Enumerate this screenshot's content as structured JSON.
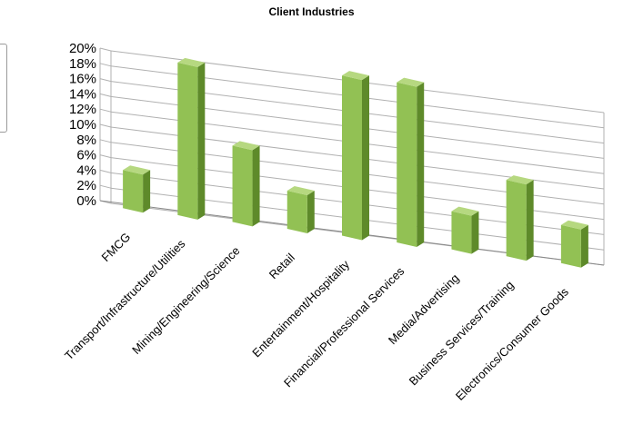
{
  "chart_data": {
    "type": "bar",
    "title": "Client Industries",
    "xlabel": "",
    "ylabel": "",
    "ylim": [
      0,
      20
    ],
    "y_tick_step": 2,
    "y_tick_suffix": "%",
    "grid": true,
    "legend": "none",
    "style": "3d-column",
    "colors": {
      "face": "#92C154",
      "side": "#5E8A2A",
      "top": "#B6D880",
      "grid": "#B0B0B0"
    },
    "categories": [
      "FMCG",
      "Transport/Infrastructure/Utilities",
      "Mining/Engineering/Science",
      "Retail",
      "Entertainment/Hospitality",
      "Financial/Professional Services",
      "Media/Advertising",
      "Business Services/Training",
      "Electronics/Consumer Goods"
    ],
    "values": [
      5,
      20,
      10,
      5,
      21,
      21,
      5,
      10,
      5
    ]
  }
}
